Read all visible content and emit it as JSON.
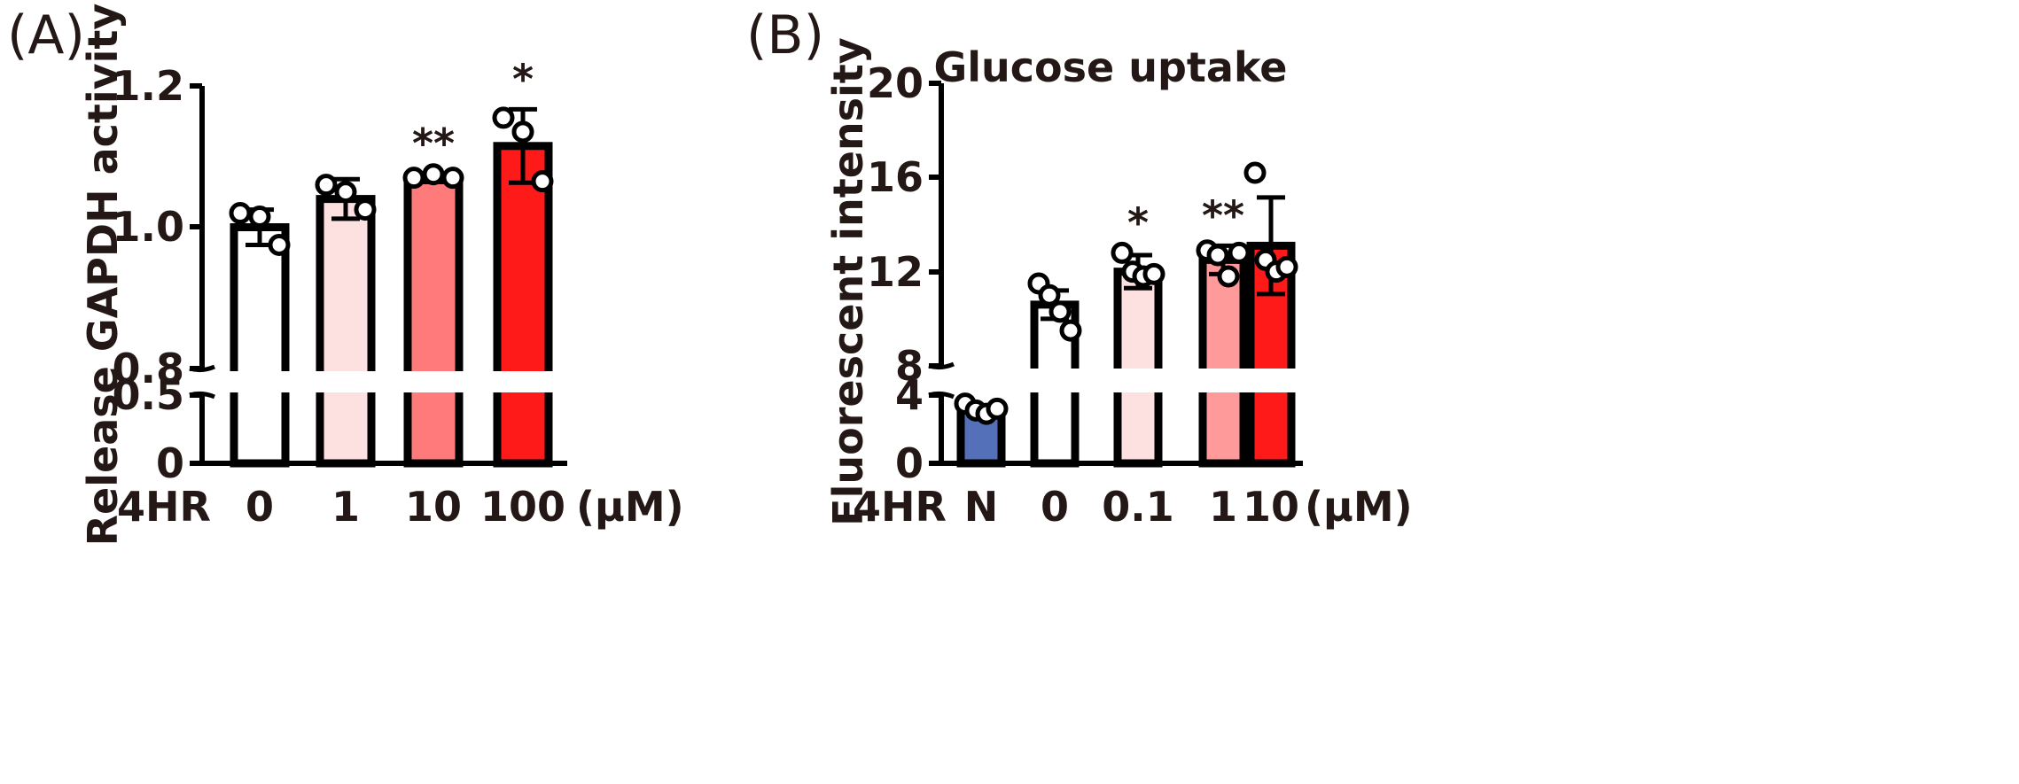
{
  "chart_data": [
    {
      "panel": "(A)",
      "type": "bar",
      "title": "",
      "ylabel": "Release GAPDH activity",
      "x_prefix": "4HR",
      "x_unit": "(μM)",
      "categories": [
        "0",
        "1",
        "10",
        "100"
      ],
      "values": [
        1.0,
        1.04,
        1.07,
        1.115
      ],
      "errors": [
        0.025,
        0.028,
        0.006,
        0.052
      ],
      "points": [
        [
          1.02,
          1.015,
          0.975
        ],
        [
          1.06,
          1.05,
          1.025
        ],
        [
          1.07,
          1.075,
          1.07
        ],
        [
          1.155,
          1.135,
          1.065
        ]
      ],
      "significance": [
        "",
        "",
        "**",
        "*"
      ],
      "bar_colors": [
        "#ffffff",
        "#fde0e0",
        "#ff7b7b",
        "#ff1a1a"
      ],
      "y_axis_break": [
        0.5,
        0.8
      ],
      "yticks": [
        "0",
        "0.5",
        "0.8",
        "1.0",
        "1.2"
      ],
      "ylim": [
        0,
        1.2
      ]
    },
    {
      "panel": "(B)",
      "type": "bar",
      "title": "Glucose uptake",
      "ylabel": "Fluorescent intensity",
      "x_prefix": "4HR",
      "x_unit": "(μM)",
      "categories": [
        "N",
        "0",
        "0.1",
        "1",
        "10"
      ],
      "values": [
        3.1,
        10.6,
        12.0,
        12.5,
        13.1
      ],
      "errors": [
        0.3,
        0.6,
        0.7,
        0.6,
        2.05
      ],
      "points": [
        [
          3.5,
          3.1,
          2.9,
          3.2
        ],
        [
          11.5,
          11.0,
          10.3,
          9.5
        ],
        [
          12.8,
          12.0,
          11.8,
          11.9
        ],
        [
          12.9,
          12.7,
          11.8,
          12.8
        ],
        [
          16.2,
          12.5,
          12.0,
          12.2
        ]
      ],
      "significance": [
        "",
        "",
        "*",
        "**",
        ""
      ],
      "bar_colors": [
        "#5470b8",
        "#ffffff",
        "#fde0e0",
        "#ff9a9a",
        "#ff1a1a"
      ],
      "y_axis_break": [
        4,
        8
      ],
      "yticks": [
        "0",
        "4",
        "8",
        "12",
        "16",
        "20"
      ],
      "ylim": [
        0,
        20
      ]
    }
  ]
}
